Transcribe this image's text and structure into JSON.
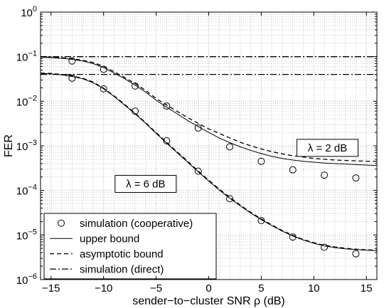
{
  "chart_data": {
    "type": "line",
    "xlabel": "sender−to−cluster SNR ρ (dB)",
    "ylabel": "FER",
    "xlim": [
      -16,
      16
    ],
    "ylim": [
      1e-06,
      1
    ],
    "y_scale": "log",
    "x_ticks": [
      -15,
      -10,
      -5,
      0,
      5,
      10,
      15
    ],
    "x_tick_labels": [
      "−15",
      "−10",
      "−5",
      "0",
      "5",
      "10",
      "15"
    ],
    "y_ticks": [
      {
        "value": 1e-06,
        "base": "10",
        "exp": "−6"
      },
      {
        "value": 1e-05,
        "base": "10",
        "exp": "−5"
      },
      {
        "value": 0.0001,
        "base": "10",
        "exp": "−4"
      },
      {
        "value": 0.001,
        "base": "10",
        "exp": "−3"
      },
      {
        "value": 0.01,
        "base": "10",
        "exp": "−2"
      },
      {
        "value": 0.1,
        "base": "10",
        "exp": "−1"
      },
      {
        "value": 1,
        "base": "10",
        "exp": "0"
      }
    ],
    "grid": true,
    "legend_position": "bottom-left",
    "legend": [
      {
        "label": "simulation (cooperative)",
        "style": "marker-circle"
      },
      {
        "label": "upper bound",
        "style": "solid"
      },
      {
        "label": "asymptotic bound",
        "style": "dashed"
      },
      {
        "label": "simulation (direct)",
        "style": "dashdot"
      }
    ],
    "annotations": [
      {
        "text": "λ = 2 dB",
        "x": 11.3,
        "y": 0.0009
      },
      {
        "text": "λ = 6 dB",
        "x": -6.0,
        "y": 0.00014
      }
    ],
    "series": [
      {
        "group": "λ = 2 dB",
        "kind": "simulation_cooperative",
        "x": [
          -13,
          -10,
          -7,
          -4,
          -1,
          2,
          5,
          8,
          11,
          14
        ],
        "y": [
          0.08,
          0.052,
          0.022,
          0.0078,
          0.0025,
          0.00095,
          0.00045,
          0.00029,
          0.00022,
          0.00019
        ]
      },
      {
        "group": "λ = 2 dB",
        "kind": "upper_bound",
        "x": [
          -16,
          -15,
          -14,
          -13,
          -12,
          -11,
          -10,
          -9,
          -8,
          -7,
          -6,
          -5,
          -4,
          -3,
          -2,
          -1,
          0,
          1,
          2,
          3,
          4,
          5,
          6,
          7,
          8,
          9,
          10,
          11,
          12,
          13,
          14,
          15,
          16
        ],
        "y": [
          0.097,
          0.095,
          0.092,
          0.087,
          0.08,
          0.07,
          0.057,
          0.043,
          0.032,
          0.023,
          0.016,
          0.0105,
          0.0074,
          0.0052,
          0.0037,
          0.0027,
          0.002,
          0.0015,
          0.00118,
          0.00095,
          0.00079,
          0.00067,
          0.00058,
          0.00052,
          0.00048,
          0.00045,
          0.00043,
          0.00041,
          0.0004,
          0.00039,
          0.00038,
          0.00037,
          0.00036
        ]
      },
      {
        "group": "λ = 2 dB",
        "kind": "asymptotic_bound",
        "x": [
          -16,
          -15,
          -14,
          -13,
          -12,
          -11,
          -10,
          -9,
          -8,
          -7,
          -6,
          -5,
          -4,
          -3,
          -2,
          -1,
          0,
          1,
          2,
          3,
          4,
          5,
          6,
          7,
          8,
          9,
          10,
          11,
          12,
          13,
          14,
          15,
          16
        ],
        "y": [
          0.1,
          0.098,
          0.095,
          0.09,
          0.083,
          0.074,
          0.061,
          0.046,
          0.034,
          0.025,
          0.0175,
          0.0115,
          0.0082,
          0.0059,
          0.0043,
          0.0032,
          0.0024,
          0.0019,
          0.0015,
          0.0012,
          0.001,
          0.00085,
          0.00074,
          0.00066,
          0.0006,
          0.00056,
          0.00052,
          0.0005,
          0.00048,
          0.00047,
          0.00046,
          0.00045,
          0.00045
        ]
      },
      {
        "group": "λ = 2 dB",
        "kind": "simulation_direct",
        "x": [
          -16,
          16
        ],
        "y": [
          0.1,
          0.1
        ]
      },
      {
        "group": "λ = 6 dB",
        "kind": "simulation_cooperative",
        "x": [
          -13,
          -10,
          -7,
          -4,
          -1,
          2,
          5,
          8,
          11,
          14
        ],
        "y": [
          0.033,
          0.019,
          0.006,
          0.0013,
          0.00027,
          6.5e-05,
          2.1e-05,
          9e-06,
          5.3e-06,
          3.8e-06
        ]
      },
      {
        "group": "λ = 6 dB",
        "kind": "upper_bound",
        "x": [
          -16,
          -15,
          -14,
          -13,
          -12,
          -11,
          -10,
          -9,
          -8,
          -7,
          -6,
          -5,
          -4,
          -3,
          -2,
          -1,
          0,
          1,
          2,
          3,
          4,
          5,
          6,
          7,
          8,
          9,
          10,
          11,
          12,
          13,
          14,
          15,
          16
        ],
        "y": [
          0.042,
          0.041,
          0.039,
          0.036,
          0.032,
          0.026,
          0.019,
          0.0128,
          0.0082,
          0.0052,
          0.0032,
          0.0019,
          0.00115,
          0.0007,
          0.00043,
          0.00026,
          0.000162,
          0.000102,
          6.7e-05,
          4.5e-05,
          3.1e-05,
          2.2e-05,
          1.62e-05,
          1.22e-05,
          9.5e-06,
          7.7e-06,
          6.5e-06,
          5.7e-06,
          5.2e-06,
          4.9e-06,
          4.7e-06,
          4.55e-06,
          4.45e-06
        ]
      },
      {
        "group": "λ = 6 dB",
        "kind": "asymptotic_bound",
        "x": [
          -16,
          -15,
          -14,
          -13,
          -12,
          -11,
          -10,
          -9,
          -8,
          -7,
          -6,
          -5,
          -4,
          -3,
          -2,
          -1,
          0,
          1,
          2,
          3,
          4,
          5,
          6,
          7,
          8,
          9,
          10,
          11,
          12,
          13,
          14,
          15,
          16
        ],
        "y": [
          0.043,
          0.042,
          0.04,
          0.037,
          0.033,
          0.027,
          0.0196,
          0.0132,
          0.0085,
          0.0054,
          0.0033,
          0.00198,
          0.0012,
          0.00073,
          0.00045,
          0.000272,
          0.00017,
          0.000107,
          7e-05,
          4.7e-05,
          3.2e-05,
          2.3e-05,
          1.68e-05,
          1.26e-05,
          9.8e-06,
          7.9e-06,
          6.7e-06,
          5.9e-06,
          5.4e-06,
          5.05e-06,
          4.8e-06,
          4.65e-06,
          4.55e-06
        ]
      },
      {
        "group": "λ = 6 dB",
        "kind": "simulation_direct",
        "x": [
          -16,
          16
        ],
        "y": [
          0.04,
          0.04
        ]
      }
    ]
  }
}
